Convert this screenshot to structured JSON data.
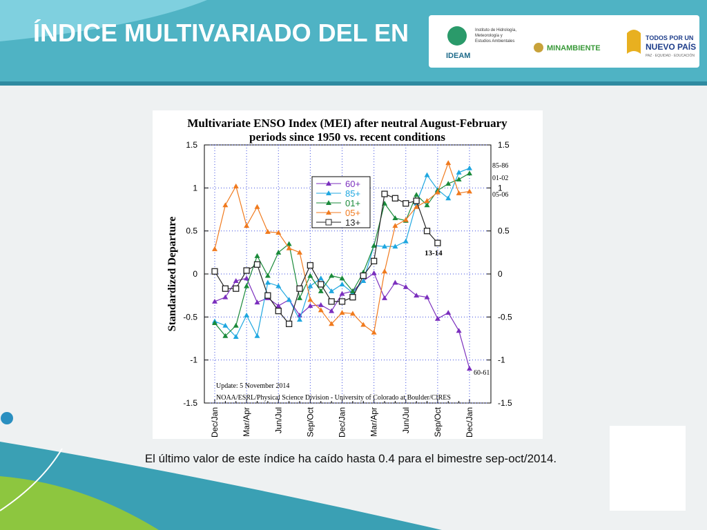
{
  "slide_title": "ÍNDICE MULTIVARIADO DEL EN",
  "logos": {
    "ideam": "IDEAM",
    "ideam_sub": "Instituto de Hidrología, Meteorología y Estudios Ambientales",
    "minambiente": "MINAMBIENTE",
    "gov_1": "TODOS POR UN",
    "gov_2": "NUEVO PAÍS",
    "gov_3": "PAZ · EQUIDAD · EDUCACIÓN"
  },
  "caption": "El último valor de este índice ha caído hasta 0.4 para el bimestre sep-oct/2014.",
  "chart_data": {
    "type": "line",
    "title": "Multivariate ENSO Index (MEI) after neutral August-February",
    "subtitle": "periods since 1950 vs. recent conditions",
    "y_label": "Standardized Departure",
    "categories": [
      "Dec/Jan",
      null,
      null,
      "Mar/Apr",
      null,
      null,
      "Jun/Jul",
      null,
      null,
      "Sep/Oct",
      null,
      null,
      "Dec/Jan",
      null,
      null,
      "Mar/Apr",
      null,
      null,
      "Jun/Jul",
      null,
      null,
      "Sep/Oct",
      null,
      null,
      "Dec/Jan"
    ],
    "series": [
      {
        "name": "60+",
        "color": "#7b2fbe",
        "marker": "triangle",
        "values": [
          -0.32,
          -0.27,
          -0.08,
          -0.05,
          -0.33,
          -0.28,
          -0.37,
          -0.3,
          -0.48,
          -0.37,
          -0.36,
          -0.43,
          -0.23,
          -0.2,
          -0.08,
          0.01,
          -0.28,
          -0.1,
          -0.15,
          -0.25,
          -0.27,
          -0.52,
          -0.45,
          -0.66,
          -1.1
        ]
      },
      {
        "name": "85+",
        "color": "#1fa7e0",
        "marker": "triangle",
        "values": [
          -0.55,
          -0.6,
          -0.73,
          -0.48,
          -0.72,
          -0.1,
          -0.14,
          -0.3,
          -0.53,
          -0.14,
          -0.05,
          -0.2,
          -0.12,
          -0.22,
          -0.08,
          0.33,
          0.32,
          0.32,
          0.38,
          0.82,
          1.15,
          0.98,
          0.88,
          1.18,
          1.23
        ]
      },
      {
        "name": "01+",
        "color": "#1a8a3a",
        "marker": "triangle",
        "values": [
          -0.57,
          -0.72,
          -0.6,
          -0.14,
          0.21,
          -0.02,
          0.25,
          0.35,
          -0.28,
          -0.02,
          -0.2,
          -0.02,
          -0.05,
          -0.2,
          0.02,
          0.33,
          0.82,
          0.65,
          0.62,
          0.92,
          0.8,
          0.97,
          1.05,
          1.1,
          1.17
        ]
      },
      {
        "name": "05+",
        "color": "#f07a1e",
        "marker": "triangle",
        "values": [
          0.29,
          0.8,
          1.02,
          0.56,
          0.78,
          0.49,
          0.48,
          0.3,
          0.25,
          -0.3,
          -0.42,
          -0.58,
          -0.45,
          -0.46,
          -0.59,
          -0.68,
          0.03,
          0.56,
          0.63,
          0.78,
          0.85,
          0.95,
          1.29,
          0.94,
          0.96
        ]
      },
      {
        "name": "13+",
        "color": "#222222",
        "marker": "square",
        "values": [
          0.03,
          -0.17,
          -0.17,
          0.04,
          0.11,
          -0.25,
          -0.43,
          -0.58,
          -0.17,
          0.1,
          -0.12,
          -0.32,
          -0.32,
          -0.27,
          -0.02,
          0.15,
          0.93,
          0.88,
          0.82,
          0.85,
          0.5,
          0.36,
          null,
          null,
          null
        ]
      }
    ],
    "ylim": [
      -1.5,
      1.5
    ],
    "yticks": [
      1.5,
      1,
      0.5,
      0,
      -0.5,
      -1,
      -1.5
    ],
    "y2lim": [
      -1.5,
      1.5
    ],
    "y2ticks": [
      1.5,
      1,
      0.5,
      0,
      -0.5,
      -1,
      -1.5
    ],
    "grid": true,
    "legend": "top-center",
    "annotations": [
      "85-86",
      "01-02",
      "05-06",
      "60-61",
      "13-14",
      "Update: 5 November 2014",
      "NOAA/ESRL/Physical Science Division - University of Colorado at Boulder/CIRES"
    ]
  }
}
